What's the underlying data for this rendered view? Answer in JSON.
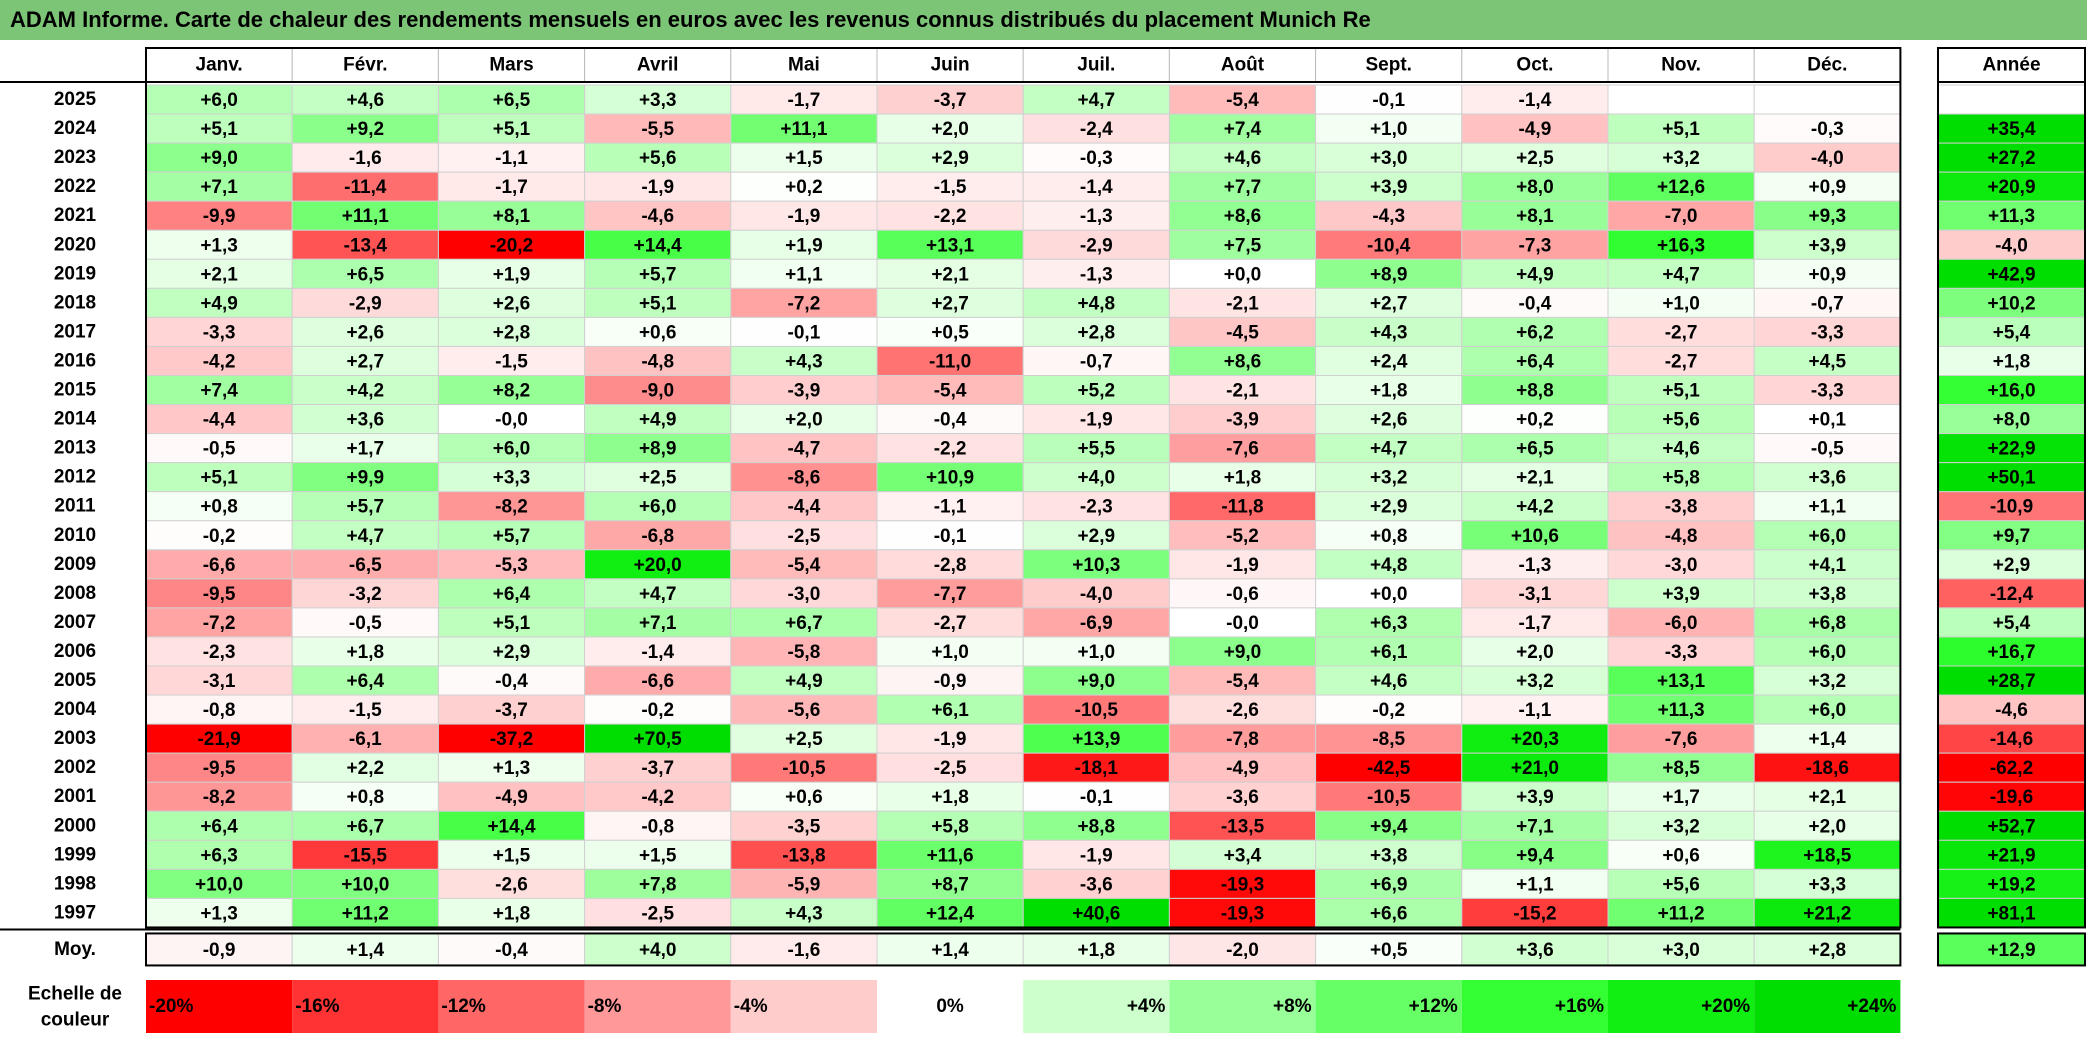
{
  "title": "ADAM Informe. Carte de chaleur des rendements mensuels en euros avec les revenus connus distribués du placement Munich Re",
  "chart_data": {
    "type": "heatmap",
    "columns": [
      "Janv.",
      "Févr.",
      "Mars",
      "Avril",
      "Mai",
      "Juin",
      "Juil.",
      "Août",
      "Sept.",
      "Oct.",
      "Nov.",
      "Déc."
    ],
    "year_column_label": "Année",
    "rows": [
      {
        "year": "2025",
        "values": [
          "+6,0",
          "+4,6",
          "+6,5",
          "+3,3",
          "-1,7",
          "-3,7",
          "+4,7",
          "-5,4",
          "-0,1",
          "-1,4",
          "",
          ""
        ],
        "annual": ""
      },
      {
        "year": "2024",
        "values": [
          "+5,1",
          "+9,2",
          "+5,1",
          "-5,5",
          "+11,1",
          "+2,0",
          "-2,4",
          "+7,4",
          "+1,0",
          "-4,9",
          "+5,1",
          "-0,3"
        ],
        "annual": "+35,4"
      },
      {
        "year": "2023",
        "values": [
          "+9,0",
          "-1,6",
          "-1,1",
          "+5,6",
          "+1,5",
          "+2,9",
          "-0,3",
          "+4,6",
          "+3,0",
          "+2,5",
          "+3,2",
          "-4,0"
        ],
        "annual": "+27,2"
      },
      {
        "year": "2022",
        "values": [
          "+7,1",
          "-11,4",
          "-1,7",
          "-1,9",
          "+0,2",
          "-1,5",
          "-1,4",
          "+7,7",
          "+3,9",
          "+8,0",
          "+12,6",
          "+0,9"
        ],
        "annual": "+20,9"
      },
      {
        "year": "2021",
        "values": [
          "-9,9",
          "+11,1",
          "+8,1",
          "-4,6",
          "-1,9",
          "-2,2",
          "-1,3",
          "+8,6",
          "-4,3",
          "+8,1",
          "-7,0",
          "+9,3"
        ],
        "annual": "+11,3"
      },
      {
        "year": "2020",
        "values": [
          "+1,3",
          "-13,4",
          "-20,2",
          "+14,4",
          "+1,9",
          "+13,1",
          "-2,9",
          "+7,5",
          "-10,4",
          "-7,3",
          "+16,3",
          "+3,9"
        ],
        "annual": "-4,0"
      },
      {
        "year": "2019",
        "values": [
          "+2,1",
          "+6,5",
          "+1,9",
          "+5,7",
          "+1,1",
          "+2,1",
          "-1,3",
          "+0,0",
          "+8,9",
          "+4,9",
          "+4,7",
          "+0,9"
        ],
        "annual": "+42,9"
      },
      {
        "year": "2018",
        "values": [
          "+4,9",
          "-2,9",
          "+2,6",
          "+5,1",
          "-7,2",
          "+2,7",
          "+4,8",
          "-2,1",
          "+2,7",
          "-0,4",
          "+1,0",
          "-0,7"
        ],
        "annual": "+10,2"
      },
      {
        "year": "2017",
        "values": [
          "-3,3",
          "+2,6",
          "+2,8",
          "+0,6",
          "-0,1",
          "+0,5",
          "+2,8",
          "-4,5",
          "+4,3",
          "+6,2",
          "-2,7",
          "-3,3"
        ],
        "annual": "+5,4"
      },
      {
        "year": "2016",
        "values": [
          "-4,2",
          "+2,7",
          "-1,5",
          "-4,8",
          "+4,3",
          "-11,0",
          "-0,7",
          "+8,6",
          "+2,4",
          "+6,4",
          "-2,7",
          "+4,5"
        ],
        "annual": "+1,8"
      },
      {
        "year": "2015",
        "values": [
          "+7,4",
          "+4,2",
          "+8,2",
          "-9,0",
          "-3,9",
          "-5,4",
          "+5,2",
          "-2,1",
          "+1,8",
          "+8,8",
          "+5,1",
          "-3,3"
        ],
        "annual": "+16,0"
      },
      {
        "year": "2014",
        "values": [
          "-4,4",
          "+3,6",
          "-0,0",
          "+4,9",
          "+2,0",
          "-0,4",
          "-1,9",
          "-3,9",
          "+2,6",
          "+0,2",
          "+5,6",
          "+0,1"
        ],
        "annual": "+8,0"
      },
      {
        "year": "2013",
        "values": [
          "-0,5",
          "+1,7",
          "+6,0",
          "+8,9",
          "-4,7",
          "-2,2",
          "+5,5",
          "-7,6",
          "+4,7",
          "+6,5",
          "+4,6",
          "-0,5"
        ],
        "annual": "+22,9"
      },
      {
        "year": "2012",
        "values": [
          "+5,1",
          "+9,9",
          "+3,3",
          "+2,5",
          "-8,6",
          "+10,9",
          "+4,0",
          "+1,8",
          "+3,2",
          "+2,1",
          "+5,8",
          "+3,6"
        ],
        "annual": "+50,1"
      },
      {
        "year": "2011",
        "values": [
          "+0,8",
          "+5,7",
          "-8,2",
          "+6,0",
          "-4,4",
          "-1,1",
          "-2,3",
          "-11,8",
          "+2,9",
          "+4,2",
          "-3,8",
          "+1,1"
        ],
        "annual": "-10,9"
      },
      {
        "year": "2010",
        "values": [
          "-0,2",
          "+4,7",
          "+5,7",
          "-6,8",
          "-2,5",
          "-0,1",
          "+2,9",
          "-5,2",
          "+0,8",
          "+10,6",
          "-4,8",
          "+6,0"
        ],
        "annual": "+9,7"
      },
      {
        "year": "2009",
        "values": [
          "-6,6",
          "-6,5",
          "-5,3",
          "+20,0",
          "-5,4",
          "-2,8",
          "+10,3",
          "-1,9",
          "+4,8",
          "-1,3",
          "-3,0",
          "+4,1"
        ],
        "annual": "+2,9"
      },
      {
        "year": "2008",
        "values": [
          "-9,5",
          "-3,2",
          "+6,4",
          "+4,7",
          "-3,0",
          "-7,7",
          "-4,0",
          "-0,6",
          "+0,0",
          "-3,1",
          "+3,9",
          "+3,8"
        ],
        "annual": "-12,4"
      },
      {
        "year": "2007",
        "values": [
          "-7,2",
          "-0,5",
          "+5,1",
          "+7,1",
          "+6,7",
          "-2,7",
          "-6,9",
          "-0,0",
          "+6,3",
          "-1,7",
          "-6,0",
          "+6,8"
        ],
        "annual": "+5,4"
      },
      {
        "year": "2006",
        "values": [
          "-2,3",
          "+1,8",
          "+2,9",
          "-1,4",
          "-5,8",
          "+1,0",
          "+1,0",
          "+9,0",
          "+6,1",
          "+2,0",
          "-3,3",
          "+6,0"
        ],
        "annual": "+16,7"
      },
      {
        "year": "2005",
        "values": [
          "-3,1",
          "+6,4",
          "-0,4",
          "-6,6",
          "+4,9",
          "-0,9",
          "+9,0",
          "-5,4",
          "+4,6",
          "+3,2",
          "+13,1",
          "+3,2"
        ],
        "annual": "+28,7"
      },
      {
        "year": "2004",
        "values": [
          "-0,8",
          "-1,5",
          "-3,7",
          "-0,2",
          "-5,6",
          "+6,1",
          "-10,5",
          "-2,6",
          "-0,2",
          "-1,1",
          "+11,3",
          "+6,0"
        ],
        "annual": "-4,6"
      },
      {
        "year": "2003",
        "values": [
          "-21,9",
          "-6,1",
          "-37,2",
          "+70,5",
          "+2,5",
          "-1,9",
          "+13,9",
          "-7,8",
          "-8,5",
          "+20,3",
          "-7,6",
          "+1,4"
        ],
        "annual": "-14,6"
      },
      {
        "year": "2002",
        "values": [
          "-9,5",
          "+2,2",
          "+1,3",
          "-3,7",
          "-10,5",
          "-2,5",
          "-18,1",
          "-4,9",
          "-42,5",
          "+21,0",
          "+8,5",
          "-18,6"
        ],
        "annual": "-62,2"
      },
      {
        "year": "2001",
        "values": [
          "-8,2",
          "+0,8",
          "-4,9",
          "-4,2",
          "+0,6",
          "+1,8",
          "-0,1",
          "-3,6",
          "-10,5",
          "+3,9",
          "+1,7",
          "+2,1"
        ],
        "annual": "-19,6"
      },
      {
        "year": "2000",
        "values": [
          "+6,4",
          "+6,7",
          "+14,4",
          "-0,8",
          "-3,5",
          "+5,8",
          "+8,8",
          "-13,5",
          "+9,4",
          "+7,1",
          "+3,2",
          "+2,0"
        ],
        "annual": "+52,7"
      },
      {
        "year": "1999",
        "values": [
          "+6,3",
          "-15,5",
          "+1,5",
          "+1,5",
          "-13,8",
          "+11,6",
          "-1,9",
          "+3,4",
          "+3,8",
          "+9,4",
          "+0,6",
          "+18,5"
        ],
        "annual": "+21,9"
      },
      {
        "year": "1998",
        "values": [
          "+10,0",
          "+10,0",
          "-2,6",
          "+7,8",
          "-5,9",
          "+8,7",
          "-3,6",
          "-19,3",
          "+6,9",
          "+1,1",
          "+5,6",
          "+3,3"
        ],
        "annual": "+19,2"
      },
      {
        "year": "1997",
        "values": [
          "+1,3",
          "+11,2",
          "+1,8",
          "-2,5",
          "+4,3",
          "+12,4",
          "+40,6",
          "-19,3",
          "+6,6",
          "-15,2",
          "+11,2",
          "+21,2"
        ],
        "annual": "+81,1"
      }
    ],
    "average": {
      "label": "Moy.",
      "values": [
        "-0,9",
        "+1,4",
        "-0,4",
        "+4,0",
        "-1,6",
        "+1,4",
        "+1,8",
        "-2,0",
        "+0,5",
        "+3,6",
        "+3,0",
        "+2,8"
      ],
      "annual": "+12,9"
    },
    "scale": {
      "label_line1": "Echelle de",
      "label_line2": "couleur",
      "stops": [
        {
          "label": "-20%",
          "value": -20,
          "color": "#ff0000"
        },
        {
          "label": "-16%",
          "value": -16,
          "color": "#ff3333"
        },
        {
          "label": "-12%",
          "value": -12,
          "color": "#ff6666"
        },
        {
          "label": "-8%",
          "value": -8,
          "color": "#ff9999"
        },
        {
          "label": "-4%",
          "value": -4,
          "color": "#ffcccc"
        },
        {
          "label": "0%",
          "value": 0,
          "color": "#ffffff"
        },
        {
          "label": "+4%",
          "value": 4,
          "color": "#ccffcc"
        },
        {
          "label": "+8%",
          "value": 8,
          "color": "#99ff99"
        },
        {
          "label": "+12%",
          "value": 12,
          "color": "#66ff66"
        },
        {
          "label": "+16%",
          "value": 16,
          "color": "#33ff33"
        },
        {
          "label": "+20%",
          "value": 20,
          "color": "#11ee11"
        },
        {
          "label": "+24%",
          "value": 24,
          "color": "#00dd00"
        }
      ]
    },
    "colors": {
      "title_bar": "#7cc576",
      "negative_max": "#ff0000",
      "positive_max": "#00dd00",
      "neutral": "#ffffff"
    }
  }
}
